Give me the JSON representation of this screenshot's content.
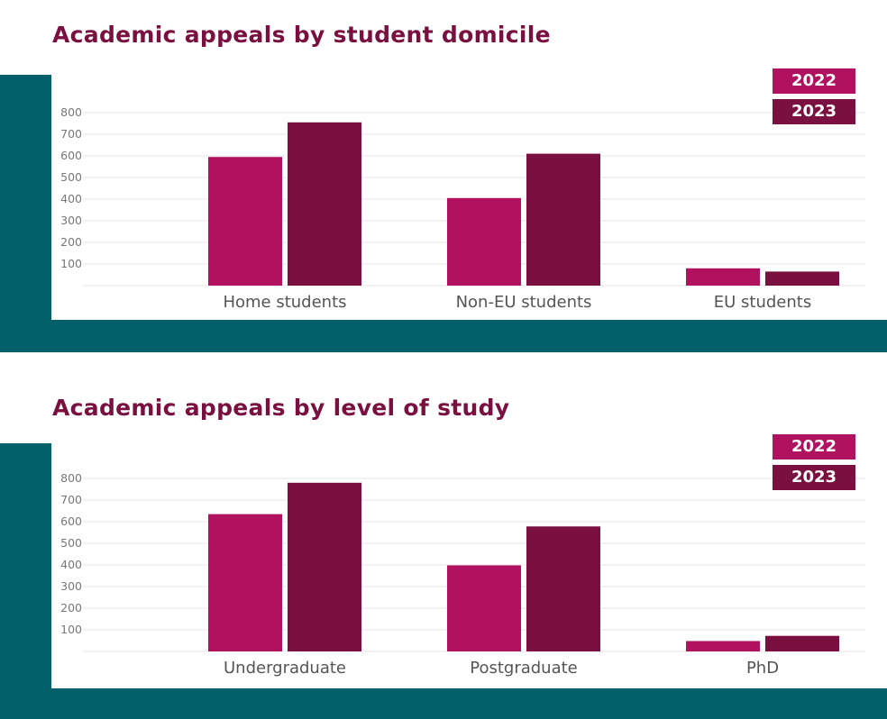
{
  "colors": {
    "series_2022": "#b01260",
    "series_2023": "#7a1040",
    "title": "#7a1040",
    "frame": "#02606a",
    "gridline": "#e6e6e6"
  },
  "chart_data": [
    {
      "type": "bar",
      "title": "Academic appeals by student domicile",
      "xlabel": "",
      "ylabel": "",
      "categories": [
        "Home students",
        "Non-EU students",
        "EU students"
      ],
      "series": [
        {
          "name": "2022",
          "values": [
            595,
            405,
            80
          ]
        },
        {
          "name": "2023",
          "values": [
            755,
            610,
            65
          ]
        }
      ],
      "yticks": [
        100,
        200,
        300,
        400,
        500,
        600,
        700,
        800
      ],
      "ylim": [
        0,
        800
      ],
      "grid": true,
      "legend": "top-right"
    },
    {
      "type": "bar",
      "title": "Academic appeals by level of study",
      "xlabel": "",
      "ylabel": "",
      "categories": [
        "Undergraduate",
        "Postgraduate",
        "PhD"
      ],
      "series": [
        {
          "name": "2022",
          "values": [
            635,
            398,
            48
          ]
        },
        {
          "name": "2023",
          "values": [
            780,
            578,
            72
          ]
        }
      ],
      "yticks": [
        100,
        200,
        300,
        400,
        500,
        600,
        700,
        800
      ],
      "ylim": [
        0,
        800
      ],
      "grid": true,
      "legend": "top-right"
    }
  ]
}
